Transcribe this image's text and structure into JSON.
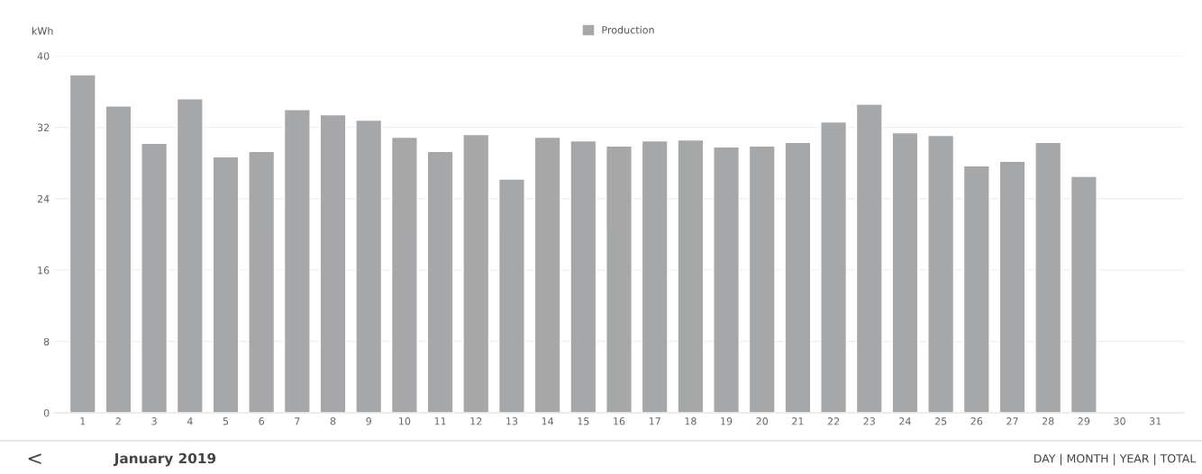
{
  "chart_data": {
    "type": "bar",
    "ylabel": "kWh",
    "categories": [
      "1",
      "2",
      "3",
      "4",
      "5",
      "6",
      "7",
      "8",
      "9",
      "10",
      "11",
      "12",
      "13",
      "14",
      "15",
      "16",
      "17",
      "18",
      "19",
      "20",
      "21",
      "22",
      "23",
      "24",
      "25",
      "26",
      "27",
      "28",
      "29",
      "30",
      "31"
    ],
    "series": [
      {
        "name": "Production",
        "color": "#a6a7a9",
        "values": [
          37.9,
          34.4,
          30.2,
          35.2,
          28.7,
          29.3,
          34.0,
          33.4,
          32.8,
          30.9,
          29.3,
          31.2,
          26.2,
          30.9,
          30.5,
          29.9,
          30.5,
          30.6,
          29.8,
          29.9,
          30.3,
          32.6,
          34.6,
          31.4,
          31.1,
          27.7,
          28.2,
          30.3,
          26.5,
          null,
          null
        ]
      }
    ],
    "ylim": [
      0,
      40
    ],
    "yticks": [
      0,
      8,
      16,
      24,
      32,
      40
    ],
    "grid": "y",
    "legend": "top",
    "annotations": [
      "<",
      "January 2019",
      "DAY | MONTH | YEAR | TOTAL"
    ]
  }
}
